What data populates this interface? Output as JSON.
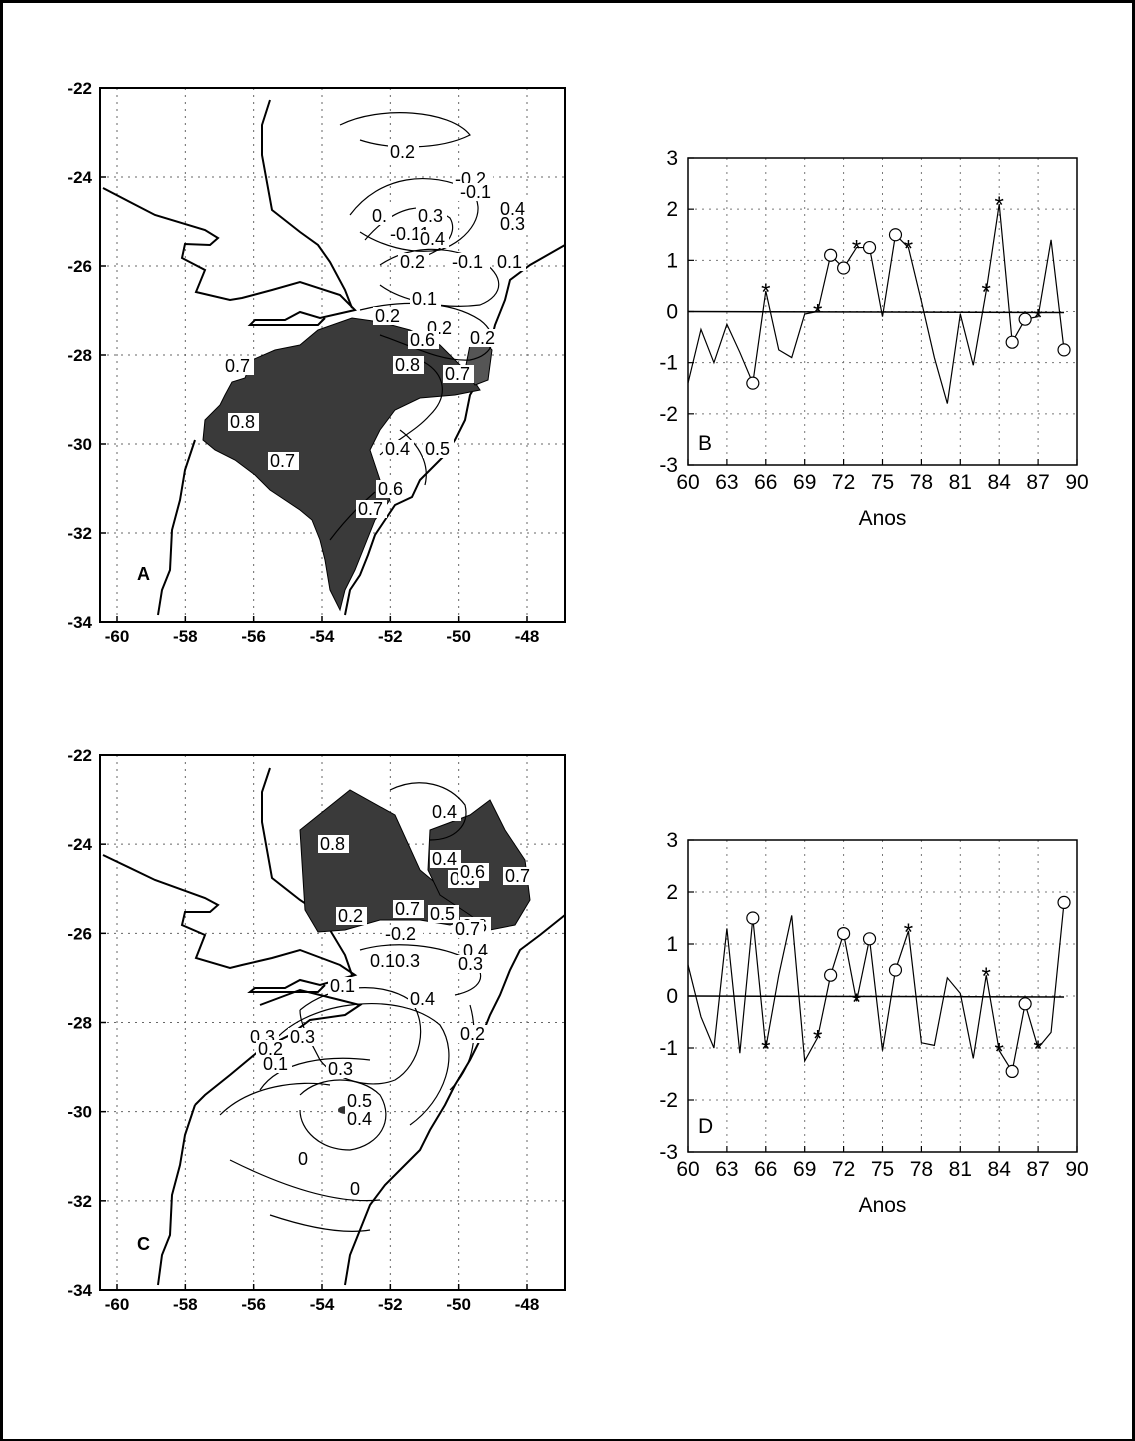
{
  "maps": [
    {
      "id": "A",
      "panel_label": "A",
      "x_ticks": [
        "-60",
        "-58",
        "-56",
        "-54",
        "-52",
        "-50",
        "-48"
      ],
      "y_ticks": [
        "-22",
        "-24",
        "-26",
        "-28",
        "-30",
        "-32",
        "-34"
      ],
      "contour_labels": [
        "0.2",
        "-0.2",
        "-0.1",
        "0.",
        "0.3",
        "0.4",
        "-0.11",
        "0.4",
        "0.3",
        "0.2",
        "-0.1",
        "0.1",
        "0.1",
        "0.2",
        "0.2",
        "0.2",
        "0.6",
        "0.8",
        "0.7",
        "0.7",
        "0.8",
        "0.5",
        "0.4",
        "0.7",
        "0.6",
        "0.7"
      ]
    },
    {
      "id": "C",
      "panel_label": "C",
      "x_ticks": [
        "-60",
        "-58",
        "-56",
        "-54",
        "-52",
        "-50",
        "-48"
      ],
      "y_ticks": [
        "-22",
        "-24",
        "-26",
        "-28",
        "-30",
        "-32",
        "-34"
      ],
      "contour_labels": [
        "0.4",
        "0.8",
        "0.4",
        "0.3",
        "0.6",
        "0.7",
        "0.7",
        "0.5",
        "0.6",
        "0.2",
        "-0.2",
        "0.10.3",
        "0.7",
        "0.4",
        "0.3",
        "0.1",
        "0.4",
        "0.2",
        "0.3",
        "0.3",
        "0.2",
        "0.1",
        "0.3",
        "0.5",
        "0.4",
        "0",
        "0"
      ]
    }
  ],
  "chart_data": [
    {
      "type": "line",
      "panel_label": "B",
      "xlabel": "Anos",
      "x_ticks": [
        "60",
        "63",
        "66",
        "69",
        "72",
        "75",
        "78",
        "81",
        "84",
        "87",
        "90"
      ],
      "y_ticks": [
        "3",
        "2",
        "1",
        "0",
        "-1",
        "-2",
        "-3"
      ],
      "xlim": [
        60,
        90
      ],
      "ylim": [
        -3,
        3
      ],
      "reference_line": 0,
      "series": [
        {
          "x": [
            60,
            61,
            62,
            63,
            64,
            65,
            66,
            67,
            68,
            69,
            70,
            71,
            72,
            73,
            74,
            75,
            76,
            77,
            78,
            79,
            80,
            81,
            82,
            83,
            84,
            85,
            86,
            87,
            88,
            89
          ],
          "y": [
            -1.4,
            -0.35,
            -1.0,
            -0.25,
            -0.8,
            -1.4,
            0.4,
            -0.75,
            -0.9,
            -0.05,
            0.0,
            1.1,
            0.85,
            1.25,
            1.25,
            -0.1,
            1.5,
            1.25,
            0.2,
            -0.9,
            -1.8,
            -0.05,
            -1.05,
            0.4,
            2.1,
            -0.6,
            -0.15,
            -0.1,
            1.4,
            -0.75
          ]
        }
      ],
      "circle_markers_x": [
        65,
        71,
        72,
        74,
        76,
        85,
        86,
        89
      ],
      "star_markers_x": [
        66,
        70,
        73,
        77,
        83,
        84,
        87
      ]
    },
    {
      "type": "line",
      "panel_label": "D",
      "xlabel": "Anos",
      "x_ticks": [
        "60",
        "63",
        "66",
        "69",
        "72",
        "75",
        "78",
        "81",
        "84",
        "87",
        "90"
      ],
      "y_ticks": [
        "3",
        "2",
        "1",
        "0",
        "-1",
        "-2",
        "-3"
      ],
      "xlim": [
        60,
        90
      ],
      "ylim": [
        -3,
        3
      ],
      "reference_line": 0,
      "series": [
        {
          "x": [
            60,
            61,
            62,
            63,
            64,
            65,
            66,
            67,
            68,
            69,
            70,
            71,
            72,
            73,
            74,
            75,
            76,
            77,
            78,
            79,
            80,
            81,
            82,
            83,
            84,
            85,
            86,
            87,
            88,
            89
          ],
          "y": [
            0.6,
            -0.4,
            -1.0,
            1.3,
            -1.1,
            1.5,
            -1.0,
            0.4,
            1.55,
            -1.25,
            -0.8,
            0.4,
            1.2,
            -0.1,
            1.1,
            -1.05,
            0.5,
            1.25,
            -0.9,
            -0.95,
            0.35,
            0.05,
            -1.2,
            0.4,
            -1.05,
            -1.45,
            -0.15,
            -1.0,
            -0.7,
            1.8
          ]
        }
      ],
      "circle_markers_x": [
        65,
        71,
        72,
        74,
        76,
        85,
        86,
        89
      ],
      "star_markers_x": [
        66,
        70,
        73,
        77,
        83,
        84,
        87
      ]
    }
  ]
}
